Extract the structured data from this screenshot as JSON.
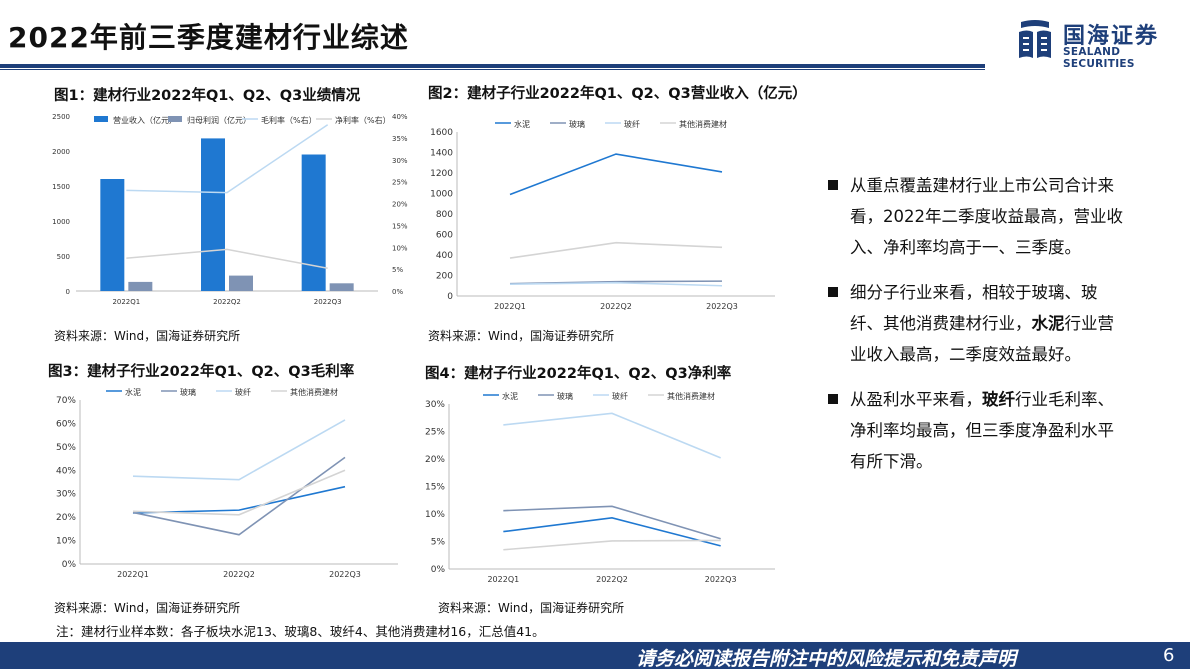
{
  "page": {
    "title": "2022年前三季度建材行业综述",
    "logo_cn": "国海证券",
    "logo_en": "SEALAND SECURITIES",
    "note": "注：建材行业样本数：各子板块水泥13、玻璃8、玻纤4、其他消费建材16，汇总值41。",
    "disclaimer": "请务必阅读报告附注中的风险提示和免责声明",
    "page_number": "6",
    "colors": {
      "accent": "#1e3f7a"
    }
  },
  "bullets": [
    {
      "text": "从重点覆盖建材行业上市公司合计来看，2022年二季度收益最高，营业收入、净利率均高于一、三季度。"
    },
    {
      "text_before": "细分子行业来看，相较于玻璃、玻纤、其他消费建材行业，",
      "bold": "水泥",
      "text_after": "行业营业收入最高，二季度效益最好。"
    },
    {
      "text_before": "从盈利水平来看，",
      "bold": "玻纤",
      "text_after": "行业毛利率、净利率均最高，但三季度净盈利水平有所下滑。"
    }
  ],
  "chart_data": [
    {
      "id": "fig1",
      "caption": "图1：建材行业2022年Q1、Q2、Q3业绩情况",
      "source": "资料来源：Wind，国海证券研究所",
      "type": "bar",
      "categories": [
        "2022Q1",
        "2022Q2",
        "2022Q3"
      ],
      "series": [
        {
          "name": "营业收入（亿元）",
          "kind": "bar",
          "axis": "left",
          "color": "#1f78d1",
          "values": [
            1600,
            2180,
            1950
          ]
        },
        {
          "name": "归母利润（亿元）",
          "kind": "bar",
          "axis": "left",
          "color": "#7f93b4",
          "values": [
            130,
            220,
            110
          ]
        },
        {
          "name": "毛利率（%右）",
          "kind": "line",
          "axis": "right",
          "color": "#bcd9f2",
          "values": [
            23,
            22.5,
            38
          ]
        },
        {
          "name": "净利率（%右）",
          "kind": "line",
          "axis": "right",
          "color": "#d4d4d4",
          "values": [
            7.5,
            9.5,
            5.2
          ]
        }
      ],
      "ylim_left": [
        0,
        2500
      ],
      "yticks_left": [
        "0",
        "500",
        "1000",
        "1500",
        "2000",
        "2500"
      ],
      "ylim_right": [
        0,
        40
      ],
      "yticks_right": [
        "0%",
        "5%",
        "10%",
        "15%",
        "20%",
        "25%",
        "30%",
        "35%",
        "40%"
      ],
      "legend": "top"
    },
    {
      "id": "fig2",
      "caption": "图2：建材子行业2022年Q1、Q2、Q3营业收入（亿元）",
      "source": "资料来源：Wind，国海证券研究所",
      "type": "line",
      "categories": [
        "2022Q1",
        "2022Q2",
        "2022Q3"
      ],
      "series": [
        {
          "name": "水泥",
          "color": "#1f78d1",
          "values": [
            990,
            1385,
            1210
          ]
        },
        {
          "name": "玻璃",
          "color": "#7f93b4",
          "values": [
            120,
            140,
            145
          ]
        },
        {
          "name": "玻纤",
          "color": "#bcd9f2",
          "values": [
            115,
            130,
            100
          ]
        },
        {
          "name": "其他消费建材",
          "color": "#d4d4d4",
          "values": [
            370,
            520,
            475
          ]
        }
      ],
      "ylim": [
        0,
        1600
      ],
      "yticks": [
        "0",
        "200",
        "400",
        "600",
        "800",
        "1000",
        "1200",
        "1400",
        "1600"
      ],
      "legend": "top"
    },
    {
      "id": "fig3",
      "caption": "图3：建材子行业2022年Q1、Q2、Q3毛利率",
      "source": "资料来源：Wind，国海证券研究所",
      "type": "line",
      "categories": [
        "2022Q1",
        "2022Q2",
        "2022Q3"
      ],
      "series": [
        {
          "name": "水泥",
          "color": "#1f78d1",
          "values": [
            21.8,
            23,
            33
          ]
        },
        {
          "name": "玻璃",
          "color": "#7f93b4",
          "values": [
            22,
            12.5,
            45.5
          ]
        },
        {
          "name": "玻纤",
          "color": "#bcd9f2",
          "values": [
            37.5,
            36,
            61.5
          ]
        },
        {
          "name": "其他消费建材",
          "color": "#d4d4d4",
          "values": [
            22.5,
            21,
            40
          ]
        }
      ],
      "ylim": [
        0,
        70
      ],
      "yticks": [
        "0%",
        "10%",
        "20%",
        "30%",
        "40%",
        "50%",
        "60%",
        "70%"
      ],
      "legend": "top"
    },
    {
      "id": "fig4",
      "caption": "图4：建材子行业2022年Q1、Q2、Q3净利率",
      "source": "资料来源：Wind，国海证券研究所",
      "type": "line",
      "categories": [
        "2022Q1",
        "2022Q2",
        "2022Q3"
      ],
      "series": [
        {
          "name": "水泥",
          "color": "#1f78d1",
          "values": [
            6.8,
            9.3,
            4.2
          ]
        },
        {
          "name": "玻璃",
          "color": "#7f93b4",
          "values": [
            10.6,
            11.4,
            5.5
          ]
        },
        {
          "name": "玻纤",
          "color": "#bcd9f2",
          "values": [
            26.2,
            28.3,
            20.2
          ]
        },
        {
          "name": "其他消费建材",
          "color": "#d4d4d4",
          "values": [
            3.5,
            5.1,
            5.2
          ]
        }
      ],
      "ylim": [
        0,
        30
      ],
      "yticks": [
        "0%",
        "5%",
        "10%",
        "15%",
        "20%",
        "25%",
        "30%"
      ],
      "legend": "top"
    }
  ]
}
